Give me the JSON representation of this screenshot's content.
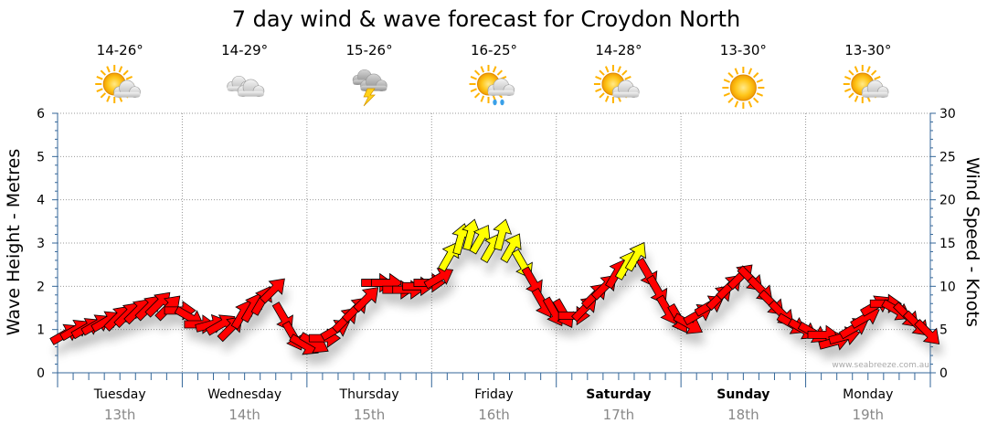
{
  "colors": {
    "arrow_red": "#ff0000",
    "arrow_yellow": "#ffff00",
    "grid": "#999999",
    "axis": "#336699",
    "date_text": "#888888",
    "watermark": "#aaaaaa"
  },
  "chart_data": {
    "type": "line",
    "title": "7 day wind & wave forecast for Croydon North",
    "ylabel_left": "Wave Height - Metres",
    "ylabel_right": "Wind Speed - Knots",
    "ylim_left": [
      0,
      6
    ],
    "ylim_right": [
      0,
      30
    ],
    "yticks_left": [
      "0",
      "1",
      "2",
      "3",
      "4",
      "5",
      "6"
    ],
    "yticks_right": [
      "0",
      "5",
      "10",
      "15",
      "20",
      "25",
      "30"
    ],
    "grid": true,
    "watermark": "www.seabreeze.com.au",
    "days": [
      {
        "day": "Tuesday",
        "date": "13th",
        "temp": "14-26°",
        "weather": "partly-cloudy",
        "bold": false
      },
      {
        "day": "Wednesday",
        "date": "14th",
        "temp": "14-29°",
        "weather": "cloudy",
        "bold": false
      },
      {
        "day": "Thursday",
        "date": "15th",
        "temp": "15-26°",
        "weather": "storm",
        "bold": false
      },
      {
        "day": "Friday",
        "date": "16th",
        "temp": "16-25°",
        "weather": "showers",
        "bold": false
      },
      {
        "day": "Saturday",
        "date": "17th",
        "temp": "14-28°",
        "weather": "partly-cloudy",
        "bold": true
      },
      {
        "day": "Sunday",
        "date": "18th",
        "temp": "13-30°",
        "weather": "sunny",
        "bold": true
      },
      {
        "day": "Monday",
        "date": "19th",
        "temp": "13-30°",
        "weather": "partly-cloudy",
        "bold": false
      }
    ],
    "series": [
      {
        "name": "Wind Speed (knots)",
        "marker": "direction-arrow",
        "x_days": [
          0.0,
          0.08,
          0.17,
          0.25,
          0.33,
          0.42,
          0.5,
          0.58,
          0.67,
          0.75,
          0.83,
          0.92,
          1.0,
          1.08,
          1.17,
          1.25,
          1.33,
          1.42,
          1.5,
          1.58,
          1.67,
          1.75,
          1.83,
          1.92,
          2.0,
          2.08,
          2.17,
          2.25,
          2.33,
          2.42,
          2.5,
          2.58,
          2.67,
          2.75,
          2.83,
          2.92,
          3.0,
          3.08,
          3.17,
          3.25,
          3.33,
          3.42,
          3.5,
          3.58,
          3.67,
          3.75,
          3.83,
          3.92,
          4.0,
          4.08,
          4.17,
          4.25,
          4.33,
          4.42,
          4.5,
          4.58,
          4.67,
          4.75,
          4.83,
          4.92,
          5.0,
          5.08,
          5.17,
          5.25,
          5.33,
          5.42,
          5.5,
          5.58,
          5.67,
          5.75,
          5.83,
          5.92,
          6.0,
          6.08,
          6.17,
          6.25,
          6.33,
          6.42,
          6.5,
          6.58,
          6.67,
          6.75,
          6.83,
          6.92
        ],
        "values": [
          4.5,
          5.0,
          5.2,
          5.6,
          6.0,
          6.4,
          6.8,
          7.2,
          7.6,
          8.0,
          7.6,
          7.2,
          6.4,
          5.6,
          5.6,
          5.6,
          5.2,
          6.8,
          7.6,
          8.4,
          9.6,
          6.4,
          4.2,
          3.2,
          3.4,
          4.0,
          5.0,
          6.2,
          7.4,
          8.6,
          10.4,
          10.4,
          9.6,
          9.6,
          10.0,
          10.4,
          11.0,
          13.5,
          15.5,
          16.0,
          15.5,
          14.5,
          16.0,
          14.5,
          12.5,
          10.5,
          8.0,
          7.0,
          6.8,
          6.6,
          7.5,
          9.0,
          10.0,
          11.5,
          12.5,
          13.5,
          11.5,
          9.5,
          7.2,
          6.2,
          5.6,
          6.8,
          7.8,
          8.8,
          10.0,
          11.2,
          10.8,
          9.6,
          8.0,
          6.8,
          5.6,
          5.0,
          4.6,
          4.4,
          3.6,
          4.2,
          5.2,
          6.4,
          7.8,
          8.0,
          7.2,
          6.6,
          5.6,
          4.6
        ],
        "direction_deg": [
          60,
          60,
          60,
          60,
          60,
          45,
          45,
          45,
          45,
          45,
          45,
          90,
          120,
          90,
          75,
          60,
          45,
          30,
          30,
          30,
          45,
          150,
          150,
          120,
          120,
          90,
          60,
          45,
          45,
          45,
          90,
          90,
          90,
          90,
          90,
          90,
          60,
          30,
          15,
          15,
          30,
          30,
          15,
          30,
          150,
          150,
          150,
          150,
          150,
          90,
          45,
          45,
          45,
          30,
          30,
          30,
          150,
          150,
          150,
          150,
          120,
          60,
          60,
          45,
          45,
          45,
          135,
          135,
          135,
          135,
          120,
          120,
          120,
          90,
          75,
          75,
          60,
          60,
          60,
          90,
          120,
          135,
          135,
          135
        ]
      }
    ]
  }
}
